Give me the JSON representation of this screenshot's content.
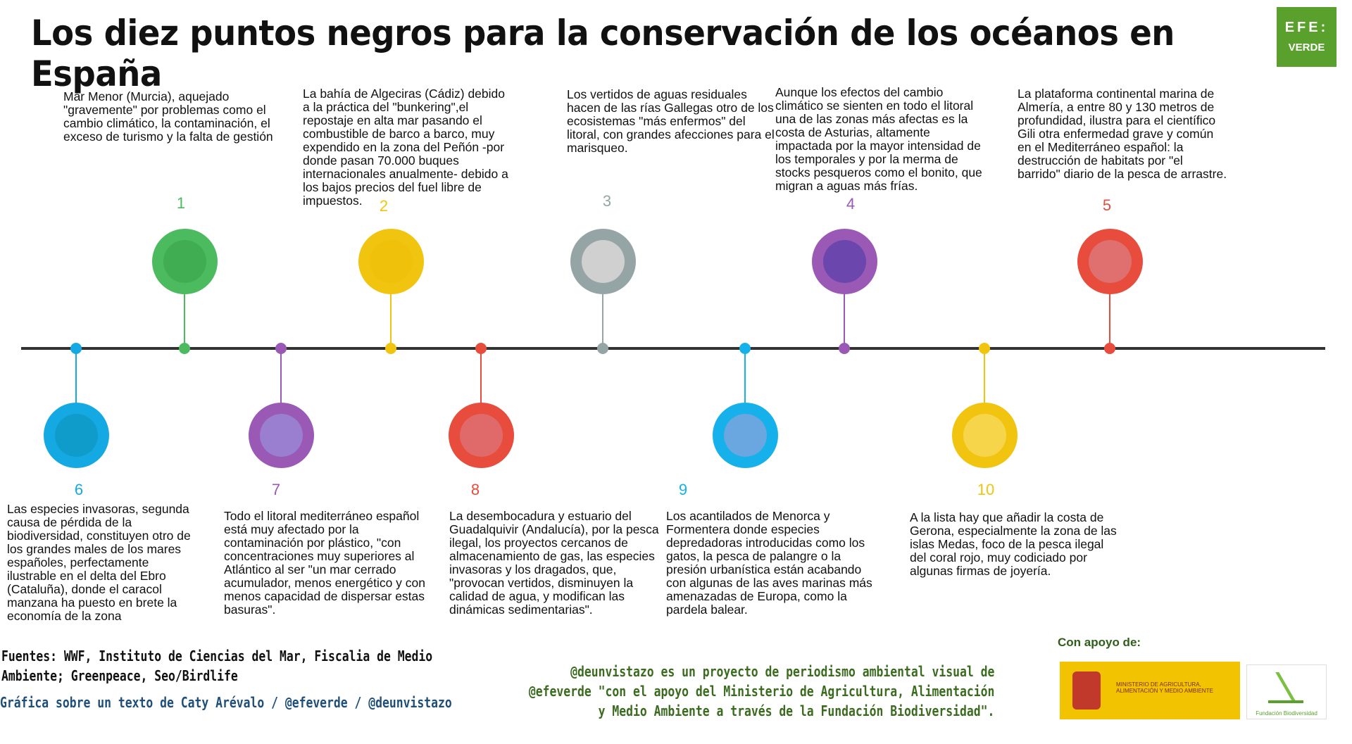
{
  "title": "Los diez puntos negros para la conservación de los océanos en España",
  "logo": {
    "line1": "EFE:",
    "line2": "VERDE"
  },
  "points": [
    {
      "n": "1",
      "color": "#4cba5e",
      "inner": "#40ad53",
      "text": "Mar Menor (Murcia), aquejado \"gravemente\" por problemas como el cambio climático, la contaminación, el exceso de turismo y la falta de gestión"
    },
    {
      "n": "2",
      "color": "#f1c40f",
      "inner": "#efc10a",
      "text": "La bahía de Algeciras (Cádiz) debido a la práctica del \"bunkering\",el repostaje en alta mar pasando el combustible de barco a barco, muy expendido en la zona del Peñón -por donde pasan 70.000 buques internacionales anualmente- debido a los bajos precios del fuel libre de impuestos."
    },
    {
      "n": "3",
      "color": "#95a5a6",
      "inner": "#d0d0d0",
      "text": "Los vertidos de aguas residuales hacen de las rías Gallegas otro de los ecosistemas \"más enfermos\" del litoral, con grandes afecciones para el marisqueo."
    },
    {
      "n": "4",
      "color": "#9b59b6",
      "inner": "#6a46ad",
      "text": "Aunque los efectos del cambio climático se sienten en todo el litoral una de las zonas más afectas es la costa de Asturias, altamente impactada por la mayor intensidad de los temporales y por la merma de stocks pesqueros como el bonito, que migran a aguas más frías."
    },
    {
      "n": "5",
      "color": "#e74c3c",
      "inner": "#e07070",
      "text": "La plataforma continental marina de Almería, a entre 80 y 130 metros de profundidad, ilustra para el científico Gili otra enfermedad grave y común en el Mediterráneo español: la destrucción de habitats por \"el barrido\" diario de la pesca de arrastre."
    },
    {
      "n": "6",
      "color": "#14a9e3",
      "inner": "#0f9ccb",
      "text": "Las especies invasoras, segunda causa de pérdida de la biodiversidad, constituyen otro de los grandes males de los mares españoles, perfectamente ilustrable en el delta del Ebro (Cataluña), donde el caracol manzana ha puesto en brete la economía de la zona"
    },
    {
      "n": "7",
      "color": "#9b59b6",
      "inner": "#9a7ecf",
      "text": "Todo el litoral mediterráneo español está muy afectado por la contaminación por plástico, \"con concentraciones muy superiores al Atlántico al ser \"un mar cerrado acumulador, menos energético y con menos capacidad de dispersar estas basuras\"."
    },
    {
      "n": "8",
      "color": "#e74c3c",
      "inner": "#e06a6a",
      "text": "La desembocadura y estuario del Guadalquivir (Andalucía), por la pesca ilegal, los proyectos cercanos de almacenamiento de gas, las especies invasoras y los dragados, que, \"provocan vertidos, disminuyen la calidad de agua, y modifican las dinámicas sedimentarias\"."
    },
    {
      "n": "9",
      "color": "#16b1ea",
      "inner": "#6aa6e0",
      "text": "Los acantilados de Menorca y Formentera donde especies depredadoras introducidas como los gatos, la pesca de palangre o la presión urbanística están acabando con algunas de las aves marinas más amenazadas de Europa, como la pardela balear."
    },
    {
      "n": "10",
      "color": "#f1c40f",
      "inner": "#f7d54a",
      "text": "A la lista hay que añadir la costa de Gerona, especialmente la zona de las islas Medas, foco de la pesca ilegal del coral rojo, muy codiciado por algunas firmas de joyería."
    }
  ],
  "footer": {
    "sources": "Fuentes: WWF, Instituto de Ciencias del Mar, Fiscalia de Medio Ambiente; Greenpeace, Seo/Birdlife",
    "credit": "Gráfica sobre un texto de Caty Arévalo / @efeverde / @deunvistazo",
    "project": "@deunvistazo es un proyecto de periodismo ambiental visual de @efeverde \"con el apoyo del Ministerio de Agricultura, Alimentación y Medio Ambiente a través de la Fundación Biodiversidad\".",
    "support": "Con apoyo de:",
    "ministry": "MINISTERIO DE AGRICULTURA, ALIMENTACIÓN Y MEDIO AMBIENTE",
    "foundation": "Fundación Biodiversidad"
  },
  "colors": {
    "sources": "#111111",
    "credit": "#1f4e79",
    "project": "#3a6b1f"
  }
}
